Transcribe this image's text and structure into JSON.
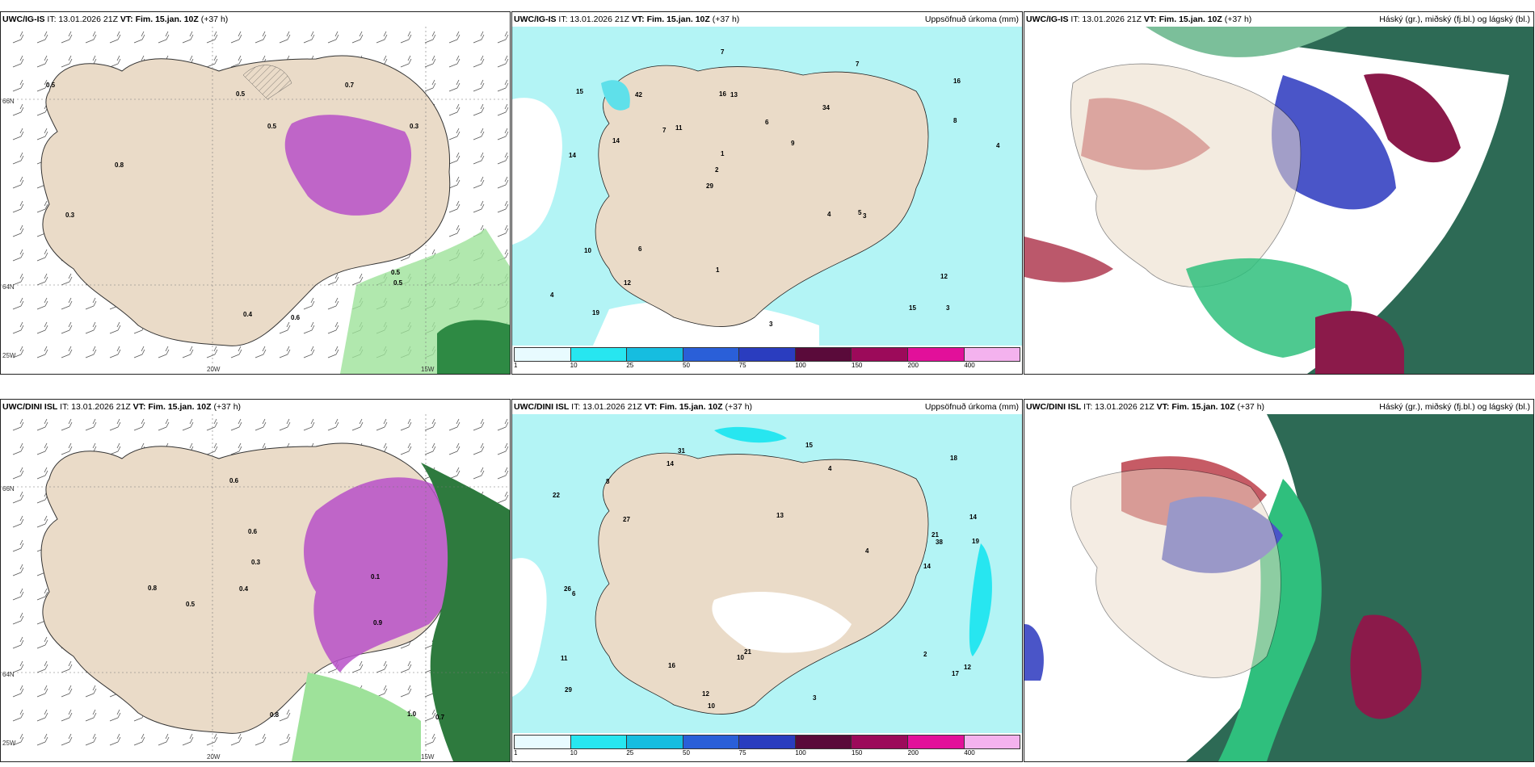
{
  "rows": [
    {
      "model": "UWC/IG-IS",
      "it": "IT: 13.01.2026 21Z",
      "vt_label": "VT:",
      "vt": "Fim. 15.jan. 10Z",
      "lead": "(+37 h)",
      "left_values": [
        "0.5",
        "0.5",
        "0.5",
        "0.3",
        "0.4",
        "0.5",
        "0.6",
        "0.7",
        "0.8",
        "0.3",
        "0.5"
      ],
      "mid_numbers": [
        "3",
        "14",
        "16",
        "29",
        "34",
        "19",
        "16",
        "6",
        "10",
        "11",
        "4",
        "12",
        "13",
        "9",
        "3",
        "15",
        "7",
        "4",
        "4",
        "8",
        "2",
        "1",
        "1",
        "42",
        "7",
        "6",
        "15",
        "12",
        "5",
        "3",
        "7",
        "14"
      ],
      "mid_title": "Uppsöfnuð úrkoma (mm)",
      "right_title": "Háský (gr.), miðský (fj.bl.) og lágský (bl.)"
    },
    {
      "model": "UWC/DINI ISL",
      "it": "IT: 13.01.2026 21Z",
      "vt_label": "VT:",
      "vt": "Fim. 15.jan. 10Z",
      "lead": "(+37 h)",
      "left_values": [
        "0.6",
        "0.7",
        "0.9",
        "0.8",
        "0.1",
        "0.4",
        "0.5",
        "0.3",
        "1.0",
        "0.8",
        "0.6"
      ],
      "mid_numbers": [
        "2",
        "14",
        "12",
        "13",
        "29",
        "31",
        "21",
        "16",
        "18",
        "27",
        "19",
        "22",
        "14",
        "10",
        "11",
        "8",
        "17",
        "14",
        "21",
        "38",
        "26",
        "6",
        "3",
        "4",
        "12",
        "10",
        "15",
        "4"
      ],
      "mid_title": "Uppsöfnuð úrkoma (mm)",
      "right_title": "Háský (gr.), miðský (fj.bl.) og lágský (bl.)"
    }
  ],
  "axis": {
    "lat_top": "66N",
    "lat_bottom": "64N",
    "lat_low": "25W",
    "lon_a": "20W",
    "lon_b": "15W"
  },
  "colorbar": {
    "labels": [
      "1",
      "10",
      "25",
      "50",
      "75",
      "100",
      "150",
      "200",
      "400"
    ],
    "colors": [
      "#e8fbff",
      "#27e6f0",
      "#16bde0",
      "#2a5fd8",
      "#2a3dbf",
      "#5a0a3a",
      "#9c0a5a",
      "#e2109a",
      "#f4b2ee"
    ]
  },
  "colors": {
    "land": "#eadbc8",
    "sea_light": "#b3f4f5",
    "precip_purple": "#c04fd0",
    "green_dark": "#1f7a3a",
    "cloud_red": "#b8323e",
    "cloud_blue": "#4a55c8",
    "cloud_green": "#2fbf7d"
  }
}
